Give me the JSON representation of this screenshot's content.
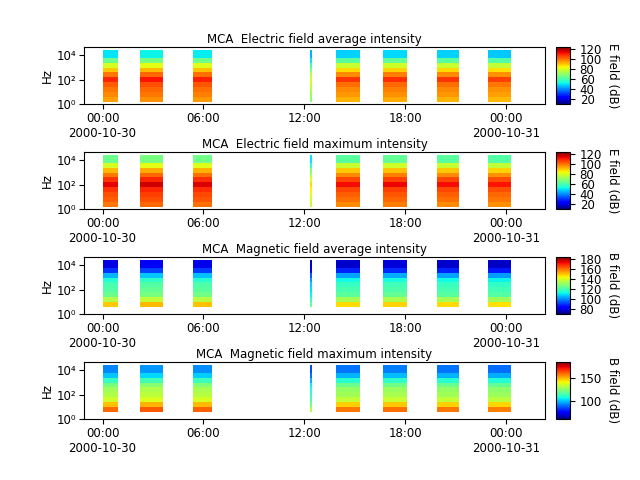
{
  "chart_data": [
    {
      "type": "heatmap",
      "title": "MCA  Electric field average intensity",
      "y_label": "Hz",
      "log": "y",
      "xlim": [
        -1.1,
        26.3
      ],
      "xticks": [
        {
          "value": 0,
          "label": "00:00\n2000-10-30"
        },
        {
          "value": 6,
          "label": "06:00"
        },
        {
          "value": 12,
          "label": "12:00"
        },
        {
          "value": 18,
          "label": "18:00"
        },
        {
          "value": 24,
          "label": "00:00\n2000-10-31"
        }
      ],
      "ylim": [
        1,
        50000
      ],
      "yticks": [
        {
          "value": 1,
          "label": "10⁰"
        },
        {
          "value": 100,
          "label": "10²"
        },
        {
          "value": 10000,
          "label": "10⁴"
        }
      ],
      "x_edges": [
        0,
        0.9,
        2.2,
        3.6,
        5.35,
        6.5,
        12.35,
        12.45,
        13.85,
        15.3,
        16.7,
        18.1,
        19.9,
        21.2,
        22.9,
        24.3
      ],
      "y_edges": [
        1.6,
        4,
        10,
        25,
        63,
        160,
        400,
        1000,
        2500,
        6300,
        30000
      ],
      "cells": [
        [
          95,
          null,
          97,
          null,
          96,
          null,
          70,
          null,
          93,
          null,
          94,
          null,
          93,
          null,
          92
        ],
        [
          98,
          null,
          100,
          null,
          99,
          null,
          72,
          null,
          96,
          null,
          97,
          null,
          96,
          null,
          95
        ],
        [
          100,
          null,
          102,
          null,
          101,
          null,
          75,
          null,
          98,
          null,
          99,
          null,
          98,
          null,
          97
        ],
        [
          103,
          null,
          105,
          null,
          104,
          null,
          78,
          null,
          101,
          null,
          102,
          null,
          101,
          null,
          100
        ],
        [
          110,
          null,
          112,
          null,
          111,
          null,
          80,
          null,
          108,
          null,
          109,
          null,
          108,
          null,
          107
        ],
        [
          100,
          null,
          102,
          null,
          101,
          null,
          75,
          null,
          98,
          null,
          99,
          null,
          98,
          null,
          97
        ],
        [
          90,
          null,
          92,
          null,
          91,
          null,
          68,
          null,
          88,
          null,
          89,
          null,
          88,
          null,
          87
        ],
        [
          80,
          null,
          82,
          null,
          81,
          null,
          60,
          null,
          78,
          null,
          79,
          null,
          78,
          null,
          77
        ],
        [
          65,
          null,
          67,
          null,
          66,
          null,
          50,
          null,
          63,
          null,
          64,
          null,
          63,
          null,
          62
        ],
        [
          50,
          null,
          52,
          null,
          51,
          null,
          45,
          null,
          48,
          null,
          49,
          null,
          48,
          null,
          47
        ]
      ],
      "colorbar_range": [
        10,
        125
      ],
      "colorbar_ticks": [
        20,
        40,
        60,
        80,
        100,
        120
      ],
      "colorbar_label": "E field (dB)"
    },
    {
      "type": "heatmap",
      "title": "MCA  Electric field maximum intensity",
      "y_label": "Hz",
      "log": "y",
      "xlim": [
        -1.1,
        26.3
      ],
      "xticks": [
        {
          "value": 0,
          "label": "00:00\n2000-10-30"
        },
        {
          "value": 6,
          "label": "06:00"
        },
        {
          "value": 12,
          "label": "12:00"
        },
        {
          "value": 18,
          "label": "18:00"
        },
        {
          "value": 24,
          "label": "00:00\n2000-10-31"
        }
      ],
      "ylim": [
        1,
        50000
      ],
      "yticks": [
        {
          "value": 1,
          "label": "10⁰"
        },
        {
          "value": 100,
          "label": "10²"
        },
        {
          "value": 10000,
          "label": "10⁴"
        }
      ],
      "x_edges": [
        0,
        0.9,
        2.2,
        3.6,
        5.35,
        6.5,
        12.35,
        12.45,
        13.85,
        15.3,
        16.7,
        18.1,
        19.9,
        21.2,
        22.9,
        24.3
      ],
      "y_edges": [
        1.6,
        4,
        10,
        25,
        63,
        160,
        400,
        1000,
        2500,
        6300,
        30000
      ],
      "cells": [
        [
          100,
          null,
          102,
          null,
          101,
          null,
          78,
          null,
          98,
          null,
          99,
          null,
          98,
          null,
          97
        ],
        [
          103,
          null,
          105,
          null,
          104,
          null,
          80,
          null,
          101,
          null,
          102,
          null,
          101,
          null,
          100
        ],
        [
          105,
          null,
          107,
          null,
          106,
          null,
          82,
          null,
          103,
          null,
          104,
          null,
          103,
          null,
          102
        ],
        [
          108,
          null,
          110,
          null,
          109,
          null,
          85,
          null,
          106,
          null,
          107,
          null,
          106,
          null,
          105
        ],
        [
          115,
          null,
          117,
          null,
          116,
          null,
          88,
          null,
          113,
          null,
          114,
          null,
          113,
          null,
          112
        ],
        [
          108,
          null,
          110,
          null,
          109,
          null,
          82,
          null,
          106,
          null,
          107,
          null,
          106,
          null,
          105
        ],
        [
          100,
          null,
          102,
          null,
          101,
          null,
          75,
          null,
          98,
          null,
          99,
          null,
          98,
          null,
          97
        ],
        [
          92,
          null,
          94,
          null,
          93,
          null,
          68,
          null,
          90,
          null,
          91,
          null,
          90,
          null,
          89
        ],
        [
          80,
          null,
          82,
          null,
          81,
          null,
          58,
          null,
          78,
          null,
          79,
          null,
          78,
          null,
          77
        ],
        [
          65,
          null,
          67,
          null,
          66,
          null,
          50,
          null,
          63,
          null,
          64,
          null,
          63,
          null,
          62
        ]
      ],
      "colorbar_range": [
        10,
        125
      ],
      "colorbar_ticks": [
        20,
        40,
        60,
        80,
        100,
        120
      ],
      "colorbar_label": "E field (dB)"
    },
    {
      "type": "heatmap",
      "title": "MCA  Magnetic field average intensity",
      "y_label": "Hz",
      "log": "y",
      "xlim": [
        -1.1,
        26.3
      ],
      "xticks": [
        {
          "value": 0,
          "label": "00:00\n2000-10-30"
        },
        {
          "value": 6,
          "label": "06:00"
        },
        {
          "value": 12,
          "label": "12:00"
        },
        {
          "value": 18,
          "label": "18:00"
        },
        {
          "value": 24,
          "label": "00:00\n2000-10-31"
        }
      ],
      "ylim": [
        1,
        50000
      ],
      "yticks": [
        {
          "value": 1,
          "label": "10⁰"
        },
        {
          "value": 100,
          "label": "10²"
        },
        {
          "value": 10000,
          "label": "10⁴"
        }
      ],
      "x_edges": [
        0,
        0.9,
        2.2,
        3.6,
        5.35,
        6.5,
        12.35,
        12.45,
        13.85,
        15.3,
        16.7,
        18.1,
        19.9,
        21.2,
        22.9,
        24.3
      ],
      "y_edges": [
        4,
        10,
        25,
        63,
        160,
        400,
        1000,
        2500,
        6300,
        30000
      ],
      "cells": [
        [
          150,
          null,
          152,
          null,
          151,
          null,
          125,
          null,
          148,
          null,
          149,
          null,
          148,
          null,
          147
        ],
        [
          135,
          null,
          137,
          null,
          136,
          null,
          118,
          null,
          133,
          null,
          134,
          null,
          133,
          null,
          132
        ],
        [
          125,
          null,
          127,
          null,
          126,
          null,
          112,
          null,
          123,
          null,
          124,
          null,
          123,
          null,
          122
        ],
        [
          122,
          null,
          124,
          null,
          123,
          null,
          110,
          null,
          120,
          null,
          121,
          null,
          120,
          null,
          119
        ],
        [
          120,
          null,
          122,
          null,
          121,
          null,
          108,
          null,
          118,
          null,
          119,
          null,
          118,
          null,
          117
        ],
        [
          115,
          null,
          117,
          null,
          116,
          null,
          102,
          null,
          113,
          null,
          114,
          null,
          113,
          null,
          112
        ],
        [
          105,
          null,
          107,
          null,
          106,
          null,
          95,
          null,
          103,
          null,
          104,
          null,
          103,
          null,
          102
        ],
        [
          90,
          null,
          92,
          null,
          91,
          null,
          85,
          null,
          88,
          null,
          89,
          null,
          88,
          null,
          87
        ],
        [
          80,
          null,
          82,
          null,
          81,
          null,
          78,
          null,
          78,
          null,
          79,
          null,
          78,
          null,
          77
        ]
      ],
      "colorbar_range": [
        70,
        185
      ],
      "colorbar_ticks": [
        80,
        100,
        120,
        140,
        160,
        180
      ],
      "colorbar_label": "B field (dB)"
    },
    {
      "type": "heatmap",
      "title": "MCA  Magnetic field maximum intensity",
      "y_label": "Hz",
      "log": "y",
      "xlim": [
        -1.1,
        26.3
      ],
      "xticks": [
        {
          "value": 0,
          "label": "00:00\n2000-10-30"
        },
        {
          "value": 6,
          "label": "06:00"
        },
        {
          "value": 12,
          "label": "12:00"
        },
        {
          "value": 18,
          "label": "18:00"
        },
        {
          "value": 24,
          "label": "00:00\n2000-10-31"
        }
      ],
      "ylim": [
        1,
        50000
      ],
      "yticks": [
        {
          "value": 1,
          "label": "10⁰"
        },
        {
          "value": 100,
          "label": "10²"
        },
        {
          "value": 10000,
          "label": "10⁴"
        }
      ],
      "x_edges": [
        0,
        0.9,
        2.2,
        3.6,
        5.35,
        6.5,
        12.35,
        12.45,
        13.85,
        15.3,
        16.7,
        18.1,
        19.9,
        21.2,
        22.9,
        24.3
      ],
      "y_edges": [
        4,
        10,
        25,
        63,
        160,
        400,
        1000,
        2500,
        6300,
        30000
      ],
      "cells": [
        [
          160,
          null,
          162,
          null,
          161,
          null,
          130,
          null,
          158,
          null,
          159,
          null,
          158,
          null,
          157
        ],
        [
          148,
          null,
          150,
          null,
          149,
          null,
          122,
          null,
          146,
          null,
          147,
          null,
          146,
          null,
          145
        ],
        [
          135,
          null,
          137,
          null,
          136,
          null,
          115,
          null,
          133,
          null,
          134,
          null,
          133,
          null,
          132
        ],
        [
          130,
          null,
          132,
          null,
          131,
          null,
          112,
          null,
          128,
          null,
          129,
          null,
          128,
          null,
          127
        ],
        [
          128,
          null,
          130,
          null,
          129,
          null,
          110,
          null,
          126,
          null,
          127,
          null,
          126,
          null,
          125
        ],
        [
          122,
          null,
          124,
          null,
          123,
          null,
          105,
          null,
          120,
          null,
          121,
          null,
          120,
          null,
          119
        ],
        [
          112,
          null,
          114,
          null,
          113,
          null,
          98,
          null,
          110,
          null,
          111,
          null,
          110,
          null,
          109
        ],
        [
          100,
          null,
          102,
          null,
          101,
          null,
          90,
          null,
          98,
          null,
          99,
          null,
          98,
          null,
          97
        ],
        [
          92,
          null,
          94,
          null,
          93,
          null,
          85,
          null,
          90,
          null,
          91,
          null,
          90,
          null,
          89
        ]
      ],
      "colorbar_range": [
        60,
        185
      ],
      "colorbar_ticks": [
        100,
        150
      ],
      "colorbar_label": "B field (dB)"
    }
  ]
}
